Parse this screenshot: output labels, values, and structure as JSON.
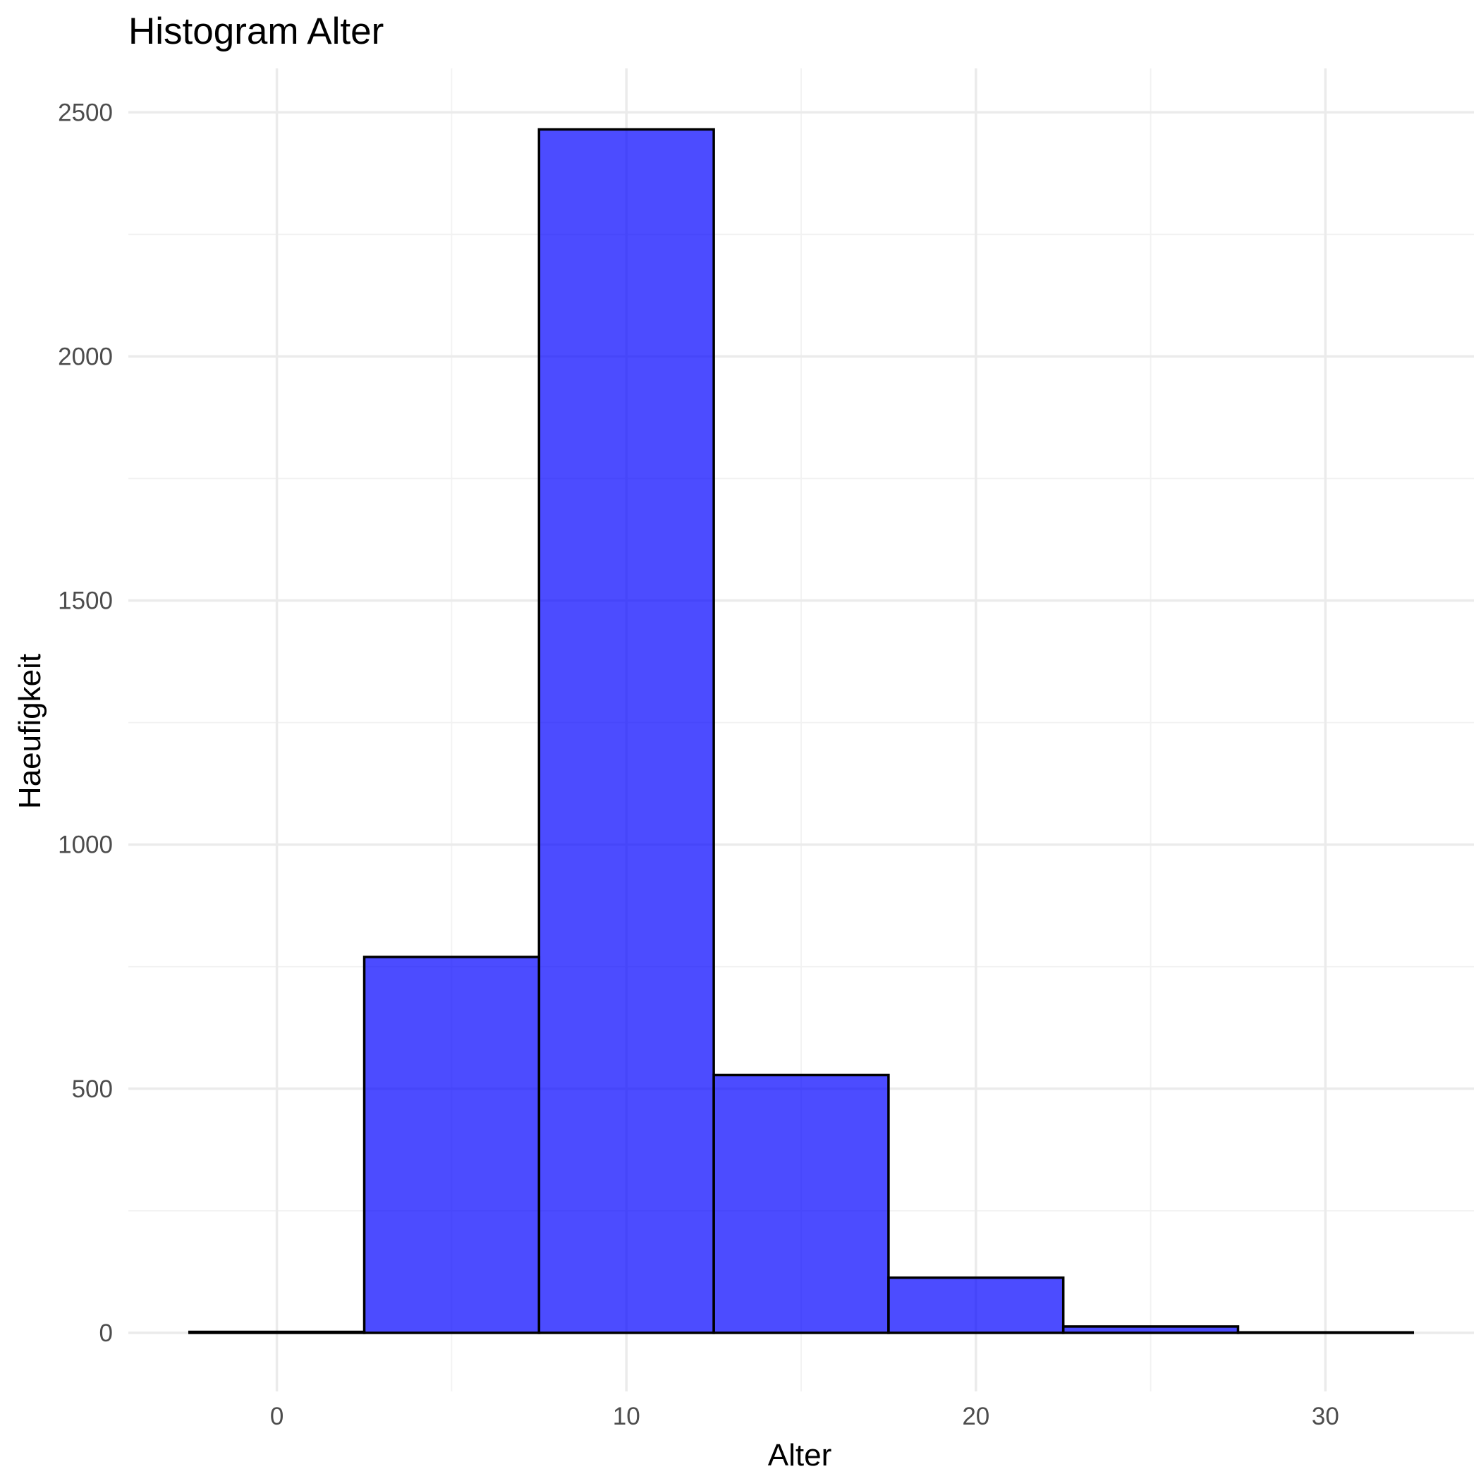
{
  "chart_data": {
    "type": "bar",
    "title": "Histogram Alter",
    "xlabel": "Alter",
    "ylabel": "Haeufigkeit",
    "bin_width": 5,
    "bins": [
      {
        "x_start": -2.5,
        "x_end": 2.5,
        "count": 2
      },
      {
        "x_start": 2.5,
        "x_end": 7.5,
        "count": 770
      },
      {
        "x_start": 7.5,
        "x_end": 12.5,
        "count": 2465
      },
      {
        "x_start": 12.5,
        "x_end": 17.5,
        "count": 528
      },
      {
        "x_start": 17.5,
        "x_end": 22.5,
        "count": 113
      },
      {
        "x_start": 22.5,
        "x_end": 27.5,
        "count": 13
      },
      {
        "x_start": 27.5,
        "x_end": 32.5,
        "count": 1
      }
    ],
    "xlim": [
      -4.25,
      34.25
    ],
    "ylim": [
      -120,
      2590
    ],
    "x_ticks": [
      0,
      10,
      20,
      30
    ],
    "x_tick_labels": [
      "0",
      "10",
      "20",
      "30"
    ],
    "x_minor_ticks": [
      5,
      15,
      25
    ],
    "y_ticks": [
      0,
      500,
      1000,
      1500,
      2000,
      2500
    ],
    "y_tick_labels": [
      "0",
      "500",
      "1000",
      "1500",
      "2000",
      "2500"
    ],
    "y_minor_ticks": [
      250,
      750,
      1250,
      1750,
      2250
    ],
    "grid": true,
    "legend": "none",
    "colors": {
      "fill": "#0000ff",
      "fill_opacity": 0.7,
      "outline": "#000000",
      "background": "#ffffff"
    }
  }
}
